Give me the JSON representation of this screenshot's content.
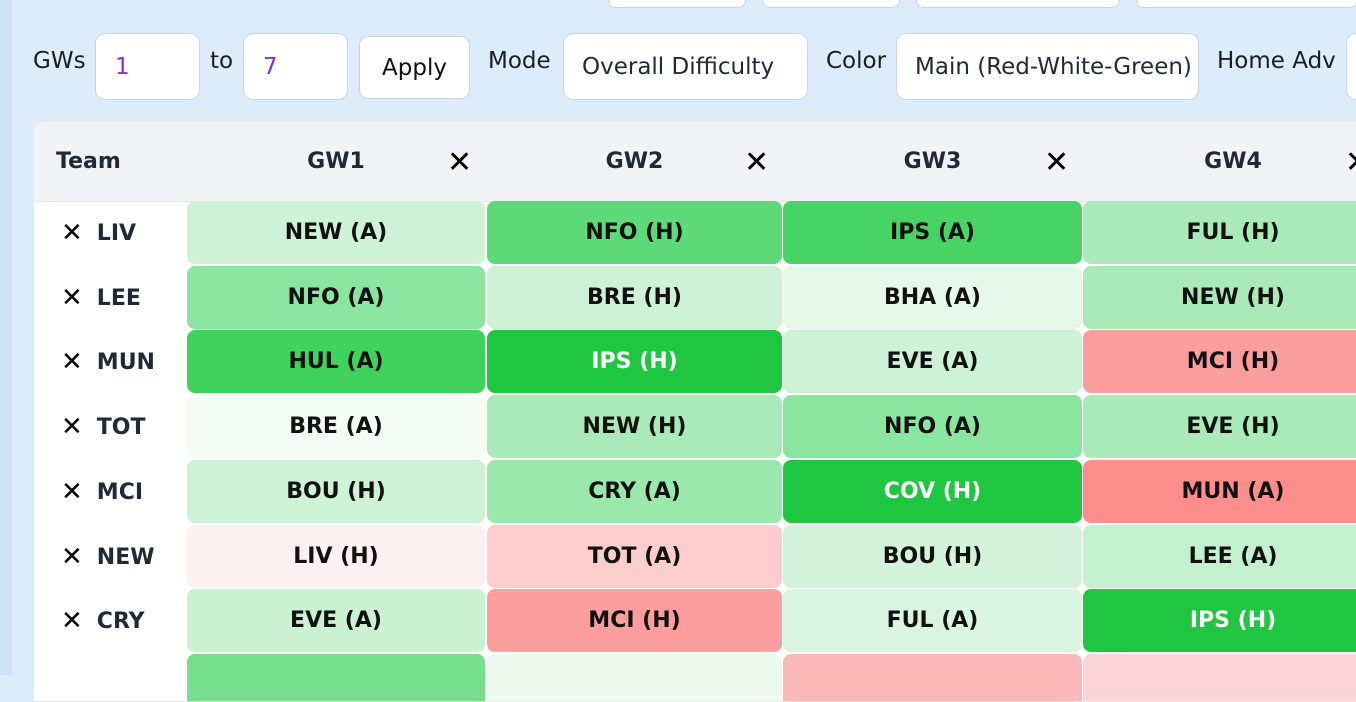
{
  "controls": {
    "gws_label": "GWs",
    "gw_from": "1",
    "to_label": "to",
    "gw_to": "7",
    "apply_label": "Apply",
    "mode_label": "Mode",
    "mode_value": "Overall Difficulty",
    "color_label": "Color",
    "color_value": "Main (Red-White-Green)",
    "home_adv_label": "Home Adv"
  },
  "table": {
    "team_header": "Team",
    "remove_glyph": "✕",
    "columns": [
      "GW1",
      "GW2",
      "GW3",
      "GW4"
    ],
    "rows": [
      {
        "team": "LIV",
        "cells": [
          {
            "text": "NEW (A)",
            "color": "#cdf2d5"
          },
          {
            "text": "NFO (H)",
            "color": "#5fda78"
          },
          {
            "text": "IPS (A)",
            "color": "#47d465"
          },
          {
            "text": "FUL (H)",
            "color": "#aaeab9"
          }
        ]
      },
      {
        "team": "LEE",
        "cells": [
          {
            "text": "NFO (A)",
            "color": "#8ae5a0"
          },
          {
            "text": "BRE (H)",
            "color": "#cdf2d5"
          },
          {
            "text": "BHA (A)",
            "color": "#e6f8ea"
          },
          {
            "text": "NEW (H)",
            "color": "#aaeab9"
          }
        ]
      },
      {
        "team": "MUN",
        "cells": [
          {
            "text": "HUL (A)",
            "color": "#3fd35e"
          },
          {
            "text": "IPS (H)",
            "color": "#1ec73f",
            "light": true
          },
          {
            "text": "EVE (A)",
            "color": "#cdf2d5"
          },
          {
            "text": "MCI (H)",
            "color": "#fc9e9e"
          }
        ]
      },
      {
        "team": "TOT",
        "cells": [
          {
            "text": "BRE (A)",
            "color": "#f4fbf5"
          },
          {
            "text": "NEW (H)",
            "color": "#aaeab9"
          },
          {
            "text": "NFO (A)",
            "color": "#8ae5a0"
          },
          {
            "text": "EVE (H)",
            "color": "#aaeab9"
          }
        ]
      },
      {
        "team": "MCI",
        "cells": [
          {
            "text": "BOU (H)",
            "color": "#cdf2d5"
          },
          {
            "text": "CRY (A)",
            "color": "#9be8ad"
          },
          {
            "text": "COV (H)",
            "color": "#1ec73f",
            "light": true
          },
          {
            "text": "MUN (A)",
            "color": "#fc8d8d"
          }
        ]
      },
      {
        "team": "NEW",
        "cells": [
          {
            "text": "LIV (H)",
            "color": "#fdf0f0"
          },
          {
            "text": "TOT (A)",
            "color": "#fccdcd"
          },
          {
            "text": "BOU (H)",
            "color": "#d3f4da"
          },
          {
            "text": "LEE (A)",
            "color": "#c3f0cd"
          }
        ]
      },
      {
        "team": "CRY",
        "cells": [
          {
            "text": "EVE (A)",
            "color": "#c9f1d2"
          },
          {
            "text": "MCI (H)",
            "color": "#fc9e9e"
          },
          {
            "text": "FUL (A)",
            "color": "#d9f5df"
          },
          {
            "text": "IPS (H)",
            "color": "#1ec73f",
            "light": true
          }
        ]
      }
    ],
    "partial_row": [
      {
        "text": "",
        "color": "#77de8e"
      },
      {
        "text": "",
        "color": "#eef9f0"
      },
      {
        "text": "",
        "color": "#fbb9b9"
      },
      {
        "text": "",
        "color": "#fbd5d5"
      }
    ]
  }
}
